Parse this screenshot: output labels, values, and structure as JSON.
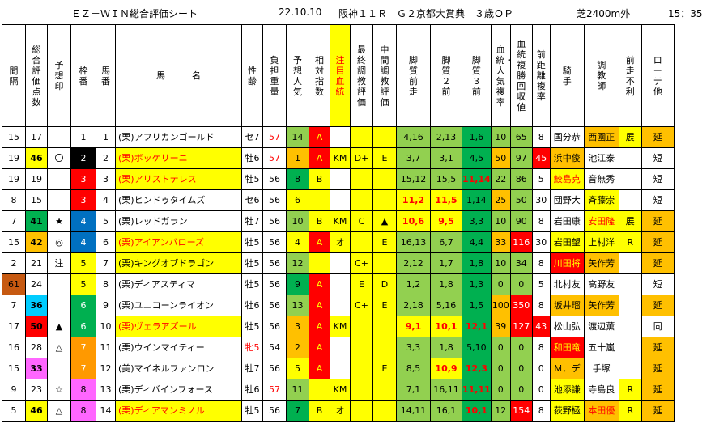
{
  "title": {
    "sheet": "ＥＺ－ＷＩＮ総合評価シート",
    "date": "22.10.10",
    "race": "阪神１１Ｒ　Ｇ２京都大賞典　３歳ＯＰ",
    "course": "芝2400m外",
    "time": "15：35"
  },
  "headers": [
    "間隔",
    "総合評価点数",
    "予想印",
    "枠番",
    "馬番",
    "馬　　　名",
    "性齢",
    "負担重量",
    "予想人気",
    "相対指数",
    "注目血統",
    "最終調教評価",
    "中間調教評価",
    "脚質前走",
    "脚質２前",
    "脚質３前",
    "血統・人気複率",
    "血統複勝回収値",
    "前距離複率",
    "騎手",
    "調教師",
    "前走不利",
    "ローテ他"
  ],
  "colors": {
    "green": "#00b050",
    "lime": "#92d050",
    "yellow": "#ffff00",
    "orange": "#ffc000",
    "darkorange": "#ff9900",
    "red": "#ff0000",
    "black": "#000000",
    "blue": "#0070c0",
    "pink": "#ff66ff",
    "cyan": "#00ccff",
    "brown": "#c65911",
    "lightgreen": "#a9d08e"
  },
  "rows": [
    {
      "gap": "15",
      "score": "17",
      "mark": "",
      "waku": "1",
      "umaban": "1",
      "name": "(栗)アフリカンゴールド",
      "sex": "セ7",
      "wt": "57",
      "pop": "14",
      "rel": "A",
      "blood": "",
      "fin": "",
      "mid": "",
      "s1": "4,16",
      "s2": "2,13",
      "s3": "1,6",
      "bp": "10",
      "br": "65",
      "dist": "8",
      "jockey": "国分恭",
      "trainer": "西園正",
      "bad": "展",
      "rote": "延"
    },
    {
      "gap": "19",
      "score": "46",
      "mark": "〇",
      "waku": "2",
      "umaban": "2",
      "name": "(栗)ボッケリーニ",
      "sex": "牡6",
      "wt": "57",
      "pop": "1",
      "rel": "A",
      "blood": "KM",
      "fin": "D+",
      "mid": "E",
      "s1": "3,7",
      "s2": "3,1",
      "s3": "4,5",
      "bp": "50",
      "br": "97",
      "dist": "45",
      "jockey": "浜中俊",
      "trainer": "池江泰",
      "bad": "",
      "rote": "短"
    },
    {
      "gap": "19",
      "score": "19",
      "mark": "",
      "waku": "3",
      "umaban": "3",
      "name": "(栗)アリストテレス",
      "sex": "牡5",
      "wt": "56",
      "pop": "8",
      "rel": "B",
      "blood": "",
      "fin": "",
      "mid": "",
      "s1": "15,12",
      "s2": "15,5",
      "s3": "11,14",
      "bp": "22",
      "br": "86",
      "dist": "5",
      "jockey": "鮫島克",
      "trainer": "音無秀",
      "bad": "",
      "rote": "短"
    },
    {
      "gap": "8",
      "score": "15",
      "mark": "",
      "waku": "3",
      "umaban": "4",
      "name": "(栗)ヒンドゥタイムズ",
      "sex": "セ6",
      "wt": "56",
      "pop": "6",
      "rel": "",
      "blood": "",
      "fin": "",
      "mid": "",
      "s1": "11,2",
      "s2": "11,5",
      "s3": "1,14",
      "bp": "25",
      "br": "50",
      "dist": "30",
      "jockey": "団野大",
      "trainer": "斉藤崇",
      "bad": "",
      "rote": "短"
    },
    {
      "gap": "7",
      "score": "41",
      "mark": "★",
      "waku": "4",
      "umaban": "5",
      "name": "(栗)レッドガラン",
      "sex": "牡7",
      "wt": "56",
      "pop": "10",
      "rel": "B",
      "blood": "KM",
      "fin": "C",
      "mid": "▲",
      "s1": "10,6",
      "s2": "9,5",
      "s3": "3,3",
      "bp": "10",
      "br": "90",
      "dist": "8",
      "jockey": "岩田康",
      "trainer": "安田隆",
      "bad": "展",
      "rote": "延"
    },
    {
      "gap": "15",
      "score": "42",
      "mark": "◎",
      "waku": "4",
      "umaban": "6",
      "name": "(栗)アイアンバローズ",
      "sex": "牡5",
      "wt": "56",
      "pop": "4",
      "rel": "A",
      "blood": "オ",
      "fin": "",
      "mid": "E",
      "s1": "16,13",
      "s2": "6,7",
      "s3": "4,4",
      "bp": "33",
      "br": "116",
      "dist": "30",
      "jockey": "岩田望",
      "trainer": "上村洋",
      "bad": "R",
      "rote": "延"
    },
    {
      "gap": "2",
      "score": "21",
      "mark": "注",
      "waku": "5",
      "umaban": "7",
      "name": "(栗)キングオブドラゴン",
      "sex": "牡5",
      "wt": "56",
      "pop": "12",
      "rel": "",
      "blood": "",
      "fin": "C+",
      "mid": "",
      "s1": "2,12",
      "s2": "1,7",
      "s3": "1,8",
      "bp": "10",
      "br": "34",
      "dist": "8",
      "jockey": "川田将",
      "trainer": "矢作芳",
      "bad": "",
      "rote": "延"
    },
    {
      "gap": "61",
      "score": "24",
      "mark": "",
      "waku": "5",
      "umaban": "8",
      "name": "(栗)ディアスティマ",
      "sex": "牡5",
      "wt": "56",
      "pop": "9",
      "rel": "A",
      "blood": "",
      "fin": "E",
      "mid": "D",
      "s1": "1,2",
      "s2": "1,8",
      "s3": "1,3",
      "bp": "0",
      "br": "0",
      "dist": "5",
      "jockey": "北村友",
      "trainer": "高野友",
      "bad": "",
      "rote": "短"
    },
    {
      "gap": "7",
      "score": "36",
      "mark": "",
      "waku": "6",
      "umaban": "9",
      "name": "(栗)ユニコーンライオン",
      "sex": "牡6",
      "wt": "56",
      "pop": "13",
      "rel": "A",
      "blood": "",
      "fin": "C+",
      "mid": "E",
      "s1": "2,18",
      "s2": "5,16",
      "s3": "1,5",
      "bp": "100",
      "br": "350",
      "dist": "8",
      "jockey": "坂井瑠",
      "trainer": "矢作芳",
      "bad": "",
      "rote": "延"
    },
    {
      "gap": "17",
      "score": "50",
      "mark": "▲",
      "waku": "6",
      "umaban": "10",
      "name": "(栗)ヴェラアズール",
      "sex": "牡5",
      "wt": "56",
      "pop": "3",
      "rel": "A",
      "blood": "KM",
      "fin": "",
      "mid": "",
      "s1": "9,1",
      "s2": "10,1",
      "s3": "12,1",
      "bp": "39",
      "br": "127",
      "dist": "43",
      "jockey": "松山弘",
      "trainer": "渡辺薫",
      "bad": "",
      "rote": "同"
    },
    {
      "gap": "16",
      "score": "28",
      "mark": "△",
      "waku": "7",
      "umaban": "11",
      "name": "(栗)ウインマイティー",
      "sex": "牝5",
      "wt": "54",
      "pop": "2",
      "rel": "A",
      "blood": "",
      "fin": "",
      "mid": "",
      "s1": "3,3",
      "s2": "1,8",
      "s3": "5,10",
      "bp": "0",
      "br": "0",
      "dist": "8",
      "jockey": "和田竜",
      "trainer": "五十嵐",
      "bad": "",
      "rote": "延"
    },
    {
      "gap": "15",
      "score": "33",
      "mark": "",
      "waku": "7",
      "umaban": "12",
      "name": "(美)マイネルファンロン",
      "sex": "牡7",
      "wt": "56",
      "pop": "5",
      "rel": "A",
      "blood": "",
      "fin": "",
      "mid": "E",
      "s1": "8,5",
      "s2": "10,9",
      "s3": "12,3",
      "bp": "0",
      "br": "0",
      "dist": "0",
      "jockey": "Ｍ．デ",
      "trainer": "手塚",
      "bad": "",
      "rote": "延"
    },
    {
      "gap": "9",
      "score": "23",
      "mark": "☆",
      "waku": "8",
      "umaban": "13",
      "name": "(栗)ディバインフォース",
      "sex": "牡6",
      "wt": "57",
      "pop": "11",
      "rel": "",
      "blood": "KM",
      "fin": "",
      "mid": "",
      "s1": "7,1",
      "s2": "16,11",
      "s3": "11,11",
      "bp": "0",
      "br": "0",
      "dist": "0",
      "jockey": "池添謙",
      "trainer": "寺島良",
      "bad": "R",
      "rote": "延"
    },
    {
      "gap": "5",
      "score": "46",
      "mark": "△",
      "waku": "8",
      "umaban": "14",
      "name": "(栗)ディアマンミノル",
      "sex": "牡5",
      "wt": "56",
      "pop": "7",
      "rel": "B",
      "blood": "オ",
      "fin": "",
      "mid": "",
      "s1": "14,11",
      "s2": "16,1",
      "s3": "10,1",
      "bp": "12",
      "br": "154",
      "dist": "8",
      "jockey": "荻野極",
      "trainer": "本田優",
      "bad": "R",
      "rote": "延"
    }
  ]
}
